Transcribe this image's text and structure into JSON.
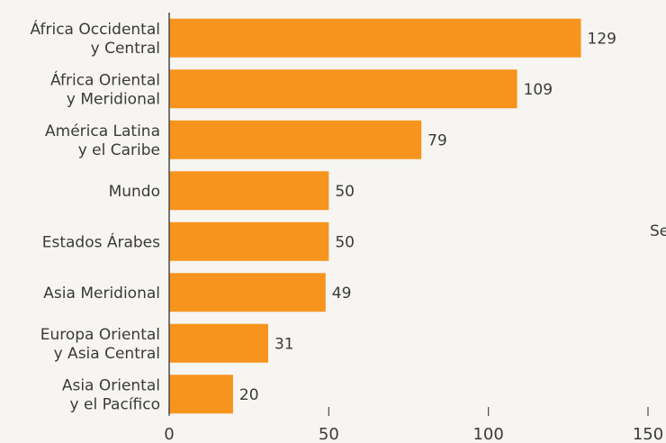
{
  "chart_data": {
    "type": "bar",
    "orientation": "horizontal",
    "categories": [
      [
        "África Occidental",
        "y Central"
      ],
      [
        "África Oriental",
        "y Meridional"
      ],
      [
        "América Latina",
        "y el Caribe"
      ],
      [
        "Mundo"
      ],
      [
        "Estados Árabes"
      ],
      [
        "Asia Meridional"
      ],
      [
        "Europa Oriental",
        "y Asia Central"
      ],
      [
        "Asia Oriental",
        "y el Pacífico"
      ]
    ],
    "values": [
      129,
      109,
      79,
      50,
      50,
      49,
      31,
      20
    ],
    "value_labels": [
      "129",
      "109",
      "79",
      "50",
      "50",
      "49",
      "31",
      "20"
    ],
    "xlim": [
      0,
      150
    ],
    "xticks": [
      0,
      50,
      100,
      150
    ],
    "xtick_labels": [
      "0",
      "50",
      "100",
      "150"
    ],
    "bar_color": "#f7941d",
    "grid": false,
    "legend": "none",
    "cut_off_text": "Se"
  }
}
